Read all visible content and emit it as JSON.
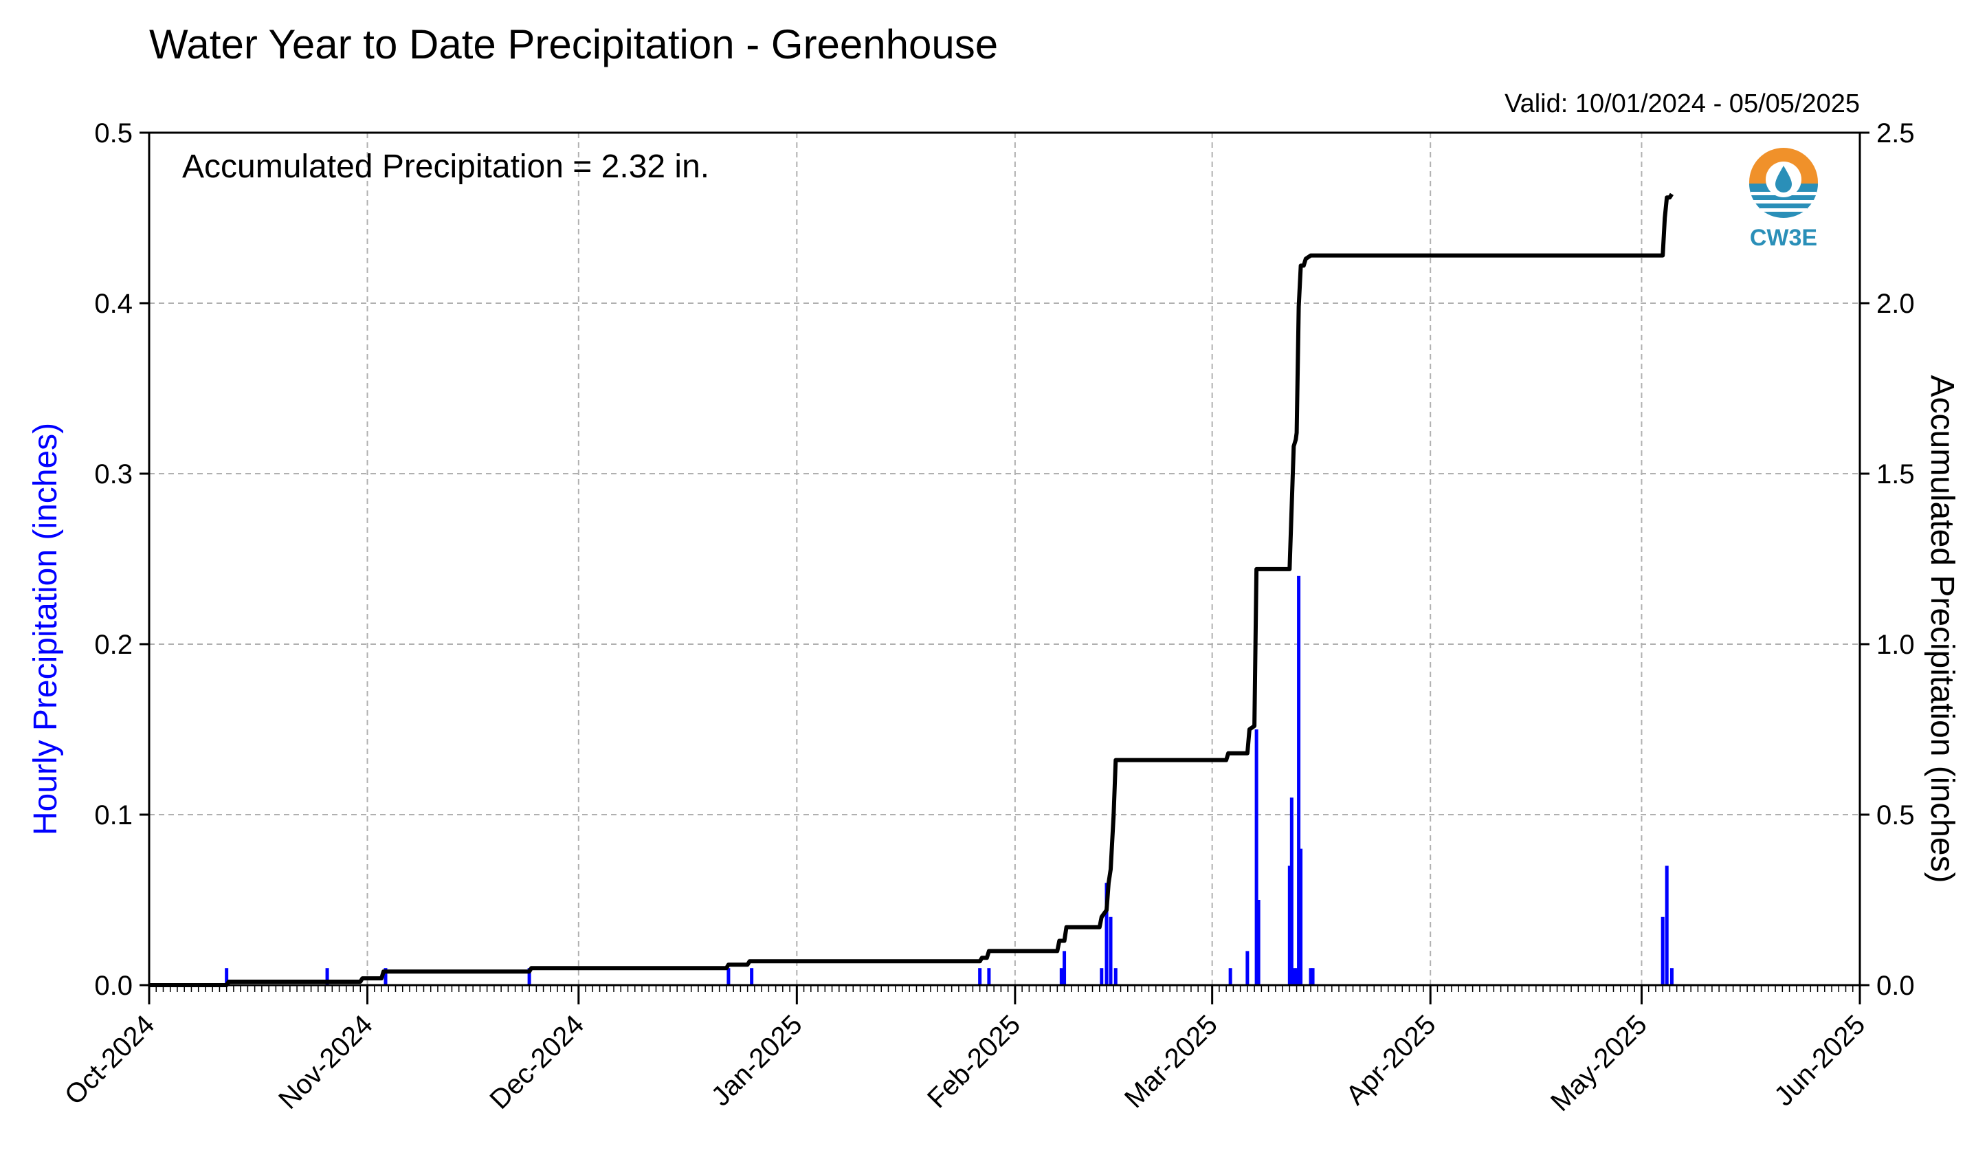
{
  "chart_data": {
    "type": "bar+line",
    "title": "Water Year to Date Precipitation - Greenhouse",
    "valid_text": "Valid: 10/01/2024 - 05/05/2025",
    "annotation": "Accumulated Precipitation = 2.32 in.",
    "left_ylabel": "Hourly Precipitation (inches)",
    "right_ylabel": "Accumulated Precipitation (inches)",
    "left_ylim": [
      0,
      0.5
    ],
    "right_ylim": [
      0,
      2.5
    ],
    "left_ticks": [
      "0.0",
      "0.1",
      "0.2",
      "0.3",
      "0.4",
      "0.5"
    ],
    "right_ticks": [
      "0.0",
      "0.5",
      "1.0",
      "1.5",
      "2.0",
      "2.5"
    ],
    "x_range": [
      "2024-10-01",
      "2025-06-01"
    ],
    "x_ticks": [
      {
        "date": "2024-10-01",
        "label": "Oct-2024"
      },
      {
        "date": "2024-11-01",
        "label": "Nov-2024"
      },
      {
        "date": "2024-12-01",
        "label": "Dec-2024"
      },
      {
        "date": "2025-01-01",
        "label": "Jan-2025"
      },
      {
        "date": "2025-02-01",
        "label": "Feb-2025"
      },
      {
        "date": "2025-03-01",
        "label": "Mar-2025"
      },
      {
        "date": "2025-04-01",
        "label": "Apr-2025"
      },
      {
        "date": "2025-05-01",
        "label": "May-2025"
      },
      {
        "date": "2025-06-01",
        "label": "Jun-2025"
      }
    ],
    "grid": true,
    "colors": {
      "hourly": "#0000ff",
      "accumulated": "#000000",
      "grid": "#b0b0b0"
    },
    "hourly_series": {
      "name": "Hourly Precipitation",
      "points": [
        {
          "x": "2024-10-12",
          "y": 0.01
        },
        {
          "x": "2024-10-26",
          "y": 0.01
        },
        {
          "x": "2024-11-03",
          "y": 0.01
        },
        {
          "x": "2024-11-24",
          "y": 0.01
        },
        {
          "x": "2024-12-22",
          "y": 0.01
        },
        {
          "x": "2024-12-25",
          "y": 0.01
        },
        {
          "x": "2025-01-27",
          "y": 0.01
        },
        {
          "x": "2025-01-28",
          "y": 0.01
        },
        {
          "x": "2025-02-07",
          "y": 0.01
        },
        {
          "x": "2025-02-08",
          "y": 0.02
        },
        {
          "x": "2025-02-13",
          "y": 0.01
        },
        {
          "x": "2025-02-14",
          "y": 0.04
        },
        {
          "x": "2025-02-14",
          "y": 0.06
        },
        {
          "x": "2025-02-15",
          "y": 0.01
        },
        {
          "x": "2025-03-03",
          "y": 0.01
        },
        {
          "x": "2025-03-06",
          "y": 0.02
        },
        {
          "x": "2025-03-07",
          "y": 0.15
        },
        {
          "x": "2025-03-07",
          "y": 0.05
        },
        {
          "x": "2025-03-12",
          "y": 0.07
        },
        {
          "x": "2025-03-12",
          "y": 0.11
        },
        {
          "x": "2025-03-12",
          "y": 0.01
        },
        {
          "x": "2025-03-13",
          "y": 0.01
        },
        {
          "x": "2025-03-13",
          "y": 0.24
        },
        {
          "x": "2025-03-13",
          "y": 0.08
        },
        {
          "x": "2025-03-15",
          "y": 0.01
        },
        {
          "x": "2025-03-15",
          "y": 0.01
        },
        {
          "x": "2025-05-04",
          "y": 0.07
        },
        {
          "x": "2025-05-04",
          "y": 0.04
        },
        {
          "x": "2025-05-05",
          "y": 0.01
        }
      ]
    },
    "accumulated_series": {
      "name": "Accumulated Precipitation",
      "points": [
        {
          "x": "2024-10-01",
          "y": 0.0
        },
        {
          "x": "2024-10-12",
          "y": 0.0
        },
        {
          "x": "2024-10-12",
          "y": 0.01
        },
        {
          "x": "2024-10-31",
          "y": 0.01
        },
        {
          "x": "2024-10-31",
          "y": 0.02
        },
        {
          "x": "2024-11-03",
          "y": 0.02
        },
        {
          "x": "2024-11-03",
          "y": 0.04
        },
        {
          "x": "2024-11-24",
          "y": 0.04
        },
        {
          "x": "2024-11-24",
          "y": 0.05
        },
        {
          "x": "2024-12-22",
          "y": 0.05
        },
        {
          "x": "2024-12-22",
          "y": 0.06
        },
        {
          "x": "2024-12-25",
          "y": 0.06
        },
        {
          "x": "2024-12-25",
          "y": 0.07
        },
        {
          "x": "2025-01-27",
          "y": 0.07
        },
        {
          "x": "2025-01-27",
          "y": 0.08
        },
        {
          "x": "2025-01-28",
          "y": 0.08
        },
        {
          "x": "2025-01-28",
          "y": 0.1
        },
        {
          "x": "2025-02-07",
          "y": 0.1
        },
        {
          "x": "2025-02-07",
          "y": 0.13
        },
        {
          "x": "2025-02-08",
          "y": 0.13
        },
        {
          "x": "2025-02-08",
          "y": 0.17
        },
        {
          "x": "2025-02-13",
          "y": 0.17
        },
        {
          "x": "2025-02-13",
          "y": 0.2
        },
        {
          "x": "2025-02-14",
          "y": 0.22
        },
        {
          "x": "2025-02-14",
          "y": 0.3
        },
        {
          "x": "2025-02-14",
          "y": 0.34
        },
        {
          "x": "2025-02-15",
          "y": 0.5
        },
        {
          "x": "2025-02-15",
          "y": 0.66
        },
        {
          "x": "2025-03-03",
          "y": 0.66
        },
        {
          "x": "2025-03-03",
          "y": 0.68
        },
        {
          "x": "2025-03-06",
          "y": 0.68
        },
        {
          "x": "2025-03-06",
          "y": 0.75
        },
        {
          "x": "2025-03-07",
          "y": 0.76
        },
        {
          "x": "2025-03-07",
          "y": 1.22
        },
        {
          "x": "2025-03-12",
          "y": 1.22
        },
        {
          "x": "2025-03-12",
          "y": 1.4
        },
        {
          "x": "2025-03-12",
          "y": 1.58
        },
        {
          "x": "2025-03-12",
          "y": 1.6
        },
        {
          "x": "2025-03-13",
          "y": 1.62
        },
        {
          "x": "2025-03-13",
          "y": 1.99
        },
        {
          "x": "2025-03-13",
          "y": 2.11
        },
        {
          "x": "2025-03-14",
          "y": 2.11
        },
        {
          "x": "2025-03-14",
          "y": 2.13
        },
        {
          "x": "2025-03-15",
          "y": 2.14
        },
        {
          "x": "2025-05-04",
          "y": 2.14
        },
        {
          "x": "2025-05-04",
          "y": 2.25
        },
        {
          "x": "2025-05-04",
          "y": 2.31
        },
        {
          "x": "2025-05-05",
          "y": 2.31
        },
        {
          "x": "2025-05-05",
          "y": 2.32
        }
      ]
    }
  },
  "logo": {
    "text": "CW3E",
    "colors": {
      "orange": "#f0912a",
      "blue": "#2a8fb8"
    }
  }
}
